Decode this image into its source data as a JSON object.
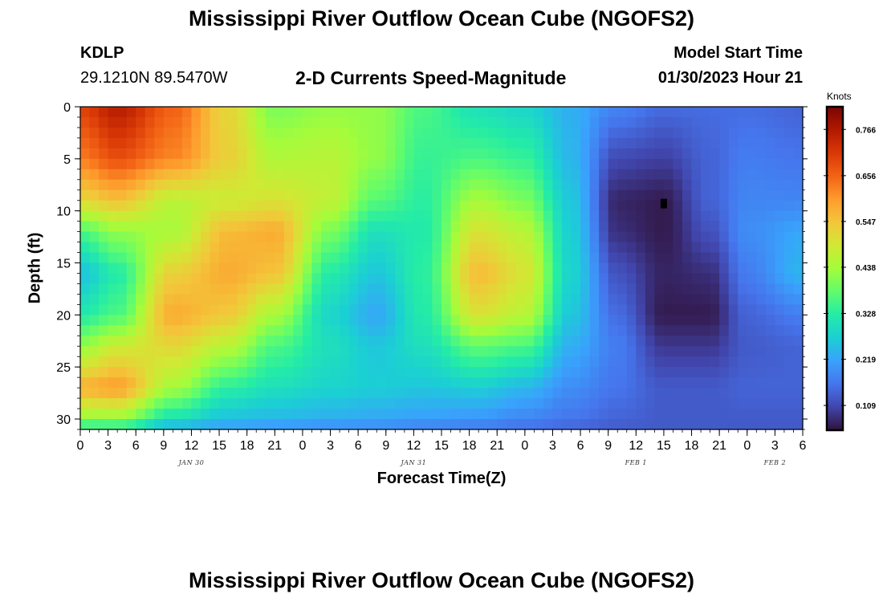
{
  "header": {
    "title": "Mississippi River Outflow Ocean Cube (NGOFS2)",
    "station": "KDLP",
    "coords": "29.1210N  89.5470W",
    "subtitle": "2-D Currents Speed-Magnitude",
    "model_label": "Model Start Time",
    "model_time": "01/30/2023 Hour 21"
  },
  "footer": {
    "title": "Mississippi River Outflow Ocean Cube (NGOFS2)"
  },
  "chart_data": {
    "type": "heatmap",
    "xlabel": "Forecast Time(Z)",
    "ylabel": "Depth (ft)",
    "x_range_hours_from_jan30_00z": [
      0,
      78
    ],
    "ylim": [
      0,
      31
    ],
    "y_inverted": true,
    "x_tick_labels": [
      "0",
      "3",
      "6",
      "9",
      "12",
      "15",
      "18",
      "21",
      "0",
      "3",
      "6",
      "9",
      "12",
      "15",
      "18",
      "21",
      "0",
      "3",
      "6",
      "9",
      "12",
      "15",
      "18",
      "21",
      "0",
      "3",
      "6"
    ],
    "y_ticks": [
      0,
      5,
      10,
      15,
      20,
      25,
      30
    ],
    "date_labels": [
      {
        "text": "JAN 30",
        "hour": 12
      },
      {
        "text": "JAN 31",
        "hour": 36
      },
      {
        "text": "FEB 1",
        "hour": 60
      },
      {
        "text": "FEB 2",
        "hour": 75
      }
    ],
    "colorbar": {
      "unit": "Knots",
      "min": 0.05,
      "max": 0.82,
      "ticks": [
        0.109,
        0.219,
        0.328,
        0.438,
        0.547,
        0.656,
        0.766
      ],
      "colors": [
        "#30123b",
        "#4145ab",
        "#4675ed",
        "#39a2fc",
        "#1bcfd4",
        "#24eca6",
        "#61fc6c",
        "#a4fc3b",
        "#d1e834",
        "#f3c63a",
        "#fe9b2d",
        "#f36315",
        "#d93806",
        "#b11901",
        "#7a0403"
      ]
    },
    "grid": {
      "cols": 78,
      "rows": 31
    },
    "value_field_keypoints": [
      {
        "hour": 0,
        "profile": [
          [
            0,
            0.7
          ],
          [
            5,
            0.63
          ],
          [
            9,
            0.52
          ],
          [
            12,
            0.36
          ],
          [
            16,
            0.25
          ],
          [
            20,
            0.32
          ],
          [
            23,
            0.42
          ],
          [
            27,
            0.58
          ],
          [
            30,
            0.42
          ],
          [
            31,
            0.3
          ]
        ]
      },
      {
        "hour": 4,
        "profile": [
          [
            0,
            0.76
          ],
          [
            5,
            0.68
          ],
          [
            9,
            0.55
          ],
          [
            12,
            0.42
          ],
          [
            16,
            0.32
          ],
          [
            20,
            0.36
          ],
          [
            23,
            0.48
          ],
          [
            27,
            0.6
          ],
          [
            30,
            0.42
          ],
          [
            31,
            0.3
          ]
        ]
      },
      {
        "hour": 10,
        "profile": [
          [
            0,
            0.66
          ],
          [
            5,
            0.62
          ],
          [
            9,
            0.46
          ],
          [
            12,
            0.44
          ],
          [
            16,
            0.53
          ],
          [
            20,
            0.58
          ],
          [
            23,
            0.52
          ],
          [
            27,
            0.44
          ],
          [
            30,
            0.3
          ],
          [
            31,
            0.22
          ]
        ]
      },
      {
        "hour": 16,
        "profile": [
          [
            0,
            0.52
          ],
          [
            5,
            0.53
          ],
          [
            9,
            0.48
          ],
          [
            12,
            0.56
          ],
          [
            16,
            0.58
          ],
          [
            20,
            0.54
          ],
          [
            23,
            0.46
          ],
          [
            27,
            0.33
          ],
          [
            30,
            0.25
          ],
          [
            31,
            0.2
          ]
        ]
      },
      {
        "hour": 21,
        "profile": [
          [
            0,
            0.4
          ],
          [
            5,
            0.45
          ],
          [
            9,
            0.5
          ],
          [
            12,
            0.58
          ],
          [
            16,
            0.55
          ],
          [
            20,
            0.44
          ],
          [
            23,
            0.36
          ],
          [
            27,
            0.3
          ],
          [
            30,
            0.24
          ],
          [
            31,
            0.19
          ]
        ]
      },
      {
        "hour": 27,
        "profile": [
          [
            0,
            0.42
          ],
          [
            5,
            0.46
          ],
          [
            9,
            0.47
          ],
          [
            12,
            0.4
          ],
          [
            16,
            0.32
          ],
          [
            20,
            0.28
          ],
          [
            23,
            0.3
          ],
          [
            27,
            0.28
          ],
          [
            30,
            0.23
          ],
          [
            31,
            0.18
          ]
        ]
      },
      {
        "hour": 32,
        "profile": [
          [
            0,
            0.42
          ],
          [
            5,
            0.42
          ],
          [
            9,
            0.37
          ],
          [
            12,
            0.3
          ],
          [
            16,
            0.26
          ],
          [
            20,
            0.22
          ],
          [
            23,
            0.26
          ],
          [
            27,
            0.27
          ],
          [
            30,
            0.22
          ],
          [
            31,
            0.18
          ]
        ]
      },
      {
        "hour": 37,
        "profile": [
          [
            0,
            0.36
          ],
          [
            5,
            0.34
          ],
          [
            9,
            0.33
          ],
          [
            12,
            0.32
          ],
          [
            16,
            0.33
          ],
          [
            20,
            0.32
          ],
          [
            23,
            0.3
          ],
          [
            27,
            0.26
          ],
          [
            30,
            0.21
          ],
          [
            31,
            0.17
          ]
        ]
      },
      {
        "hour": 43,
        "profile": [
          [
            0,
            0.3
          ],
          [
            5,
            0.36
          ],
          [
            9,
            0.44
          ],
          [
            12,
            0.5
          ],
          [
            16,
            0.56
          ],
          [
            20,
            0.5
          ],
          [
            23,
            0.38
          ],
          [
            27,
            0.27
          ],
          [
            30,
            0.2
          ],
          [
            31,
            0.16
          ]
        ]
      },
      {
        "hour": 48,
        "profile": [
          [
            0,
            0.28
          ],
          [
            5,
            0.34
          ],
          [
            9,
            0.4
          ],
          [
            12,
            0.46
          ],
          [
            16,
            0.5
          ],
          [
            20,
            0.46
          ],
          [
            23,
            0.36
          ],
          [
            27,
            0.24
          ],
          [
            30,
            0.18
          ],
          [
            31,
            0.15
          ]
        ]
      },
      {
        "hour": 53,
        "profile": [
          [
            0,
            0.23
          ],
          [
            5,
            0.24
          ],
          [
            9,
            0.26
          ],
          [
            12,
            0.27
          ],
          [
            16,
            0.28
          ],
          [
            20,
            0.26
          ],
          [
            23,
            0.23
          ],
          [
            27,
            0.19
          ],
          [
            30,
            0.16
          ],
          [
            31,
            0.14
          ]
        ]
      },
      {
        "hour": 58,
        "profile": [
          [
            0,
            0.18
          ],
          [
            5,
            0.11
          ],
          [
            9,
            0.07
          ],
          [
            12,
            0.08
          ],
          [
            16,
            0.12
          ],
          [
            20,
            0.15
          ],
          [
            23,
            0.17
          ],
          [
            27,
            0.16
          ],
          [
            30,
            0.14
          ],
          [
            31,
            0.13
          ]
        ]
      },
      {
        "hour": 63,
        "profile": [
          [
            0,
            0.15
          ],
          [
            5,
            0.1
          ],
          [
            9,
            0.06
          ],
          [
            12,
            0.06
          ],
          [
            16,
            0.07
          ],
          [
            20,
            0.06
          ],
          [
            23,
            0.09
          ],
          [
            27,
            0.13
          ],
          [
            30,
            0.13
          ],
          [
            31,
            0.13
          ]
        ]
      },
      {
        "hour": 68,
        "profile": [
          [
            0,
            0.15
          ],
          [
            5,
            0.14
          ],
          [
            9,
            0.14
          ],
          [
            12,
            0.12
          ],
          [
            16,
            0.08
          ],
          [
            20,
            0.06
          ],
          [
            23,
            0.09
          ],
          [
            27,
            0.13
          ],
          [
            30,
            0.13
          ],
          [
            31,
            0.13
          ]
        ]
      },
      {
        "hour": 72,
        "profile": [
          [
            0,
            0.15
          ],
          [
            5,
            0.17
          ],
          [
            9,
            0.18
          ],
          [
            12,
            0.19
          ],
          [
            16,
            0.17
          ],
          [
            20,
            0.14
          ],
          [
            23,
            0.13
          ],
          [
            27,
            0.14
          ],
          [
            30,
            0.13
          ],
          [
            31,
            0.13
          ]
        ]
      },
      {
        "hour": 78,
        "profile": [
          [
            0,
            0.14
          ],
          [
            5,
            0.16
          ],
          [
            9,
            0.18
          ],
          [
            12,
            0.22
          ],
          [
            16,
            0.24
          ],
          [
            20,
            0.17
          ],
          [
            23,
            0.14
          ],
          [
            27,
            0.14
          ],
          [
            30,
            0.13
          ],
          [
            31,
            0.13
          ]
        ]
      }
    ]
  }
}
